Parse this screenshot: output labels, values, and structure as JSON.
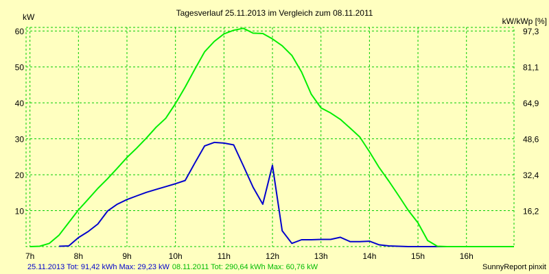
{
  "chart_data": {
    "type": "line",
    "title": "Tagesverlauf 25.11.2013 im Vergleich zum 08.11.2011",
    "ylabel_left": "kW",
    "ylabel_right": "kW/kWp [%]",
    "xlim": [
      6.92,
      16.98
    ],
    "ylim": [
      0,
      61
    ],
    "grid": true,
    "x_ticks": [
      7,
      8,
      9,
      10,
      11,
      12,
      13,
      14,
      15,
      16
    ],
    "x_tick_labels": [
      "7h",
      "8h",
      "9h",
      "10h",
      "11h",
      "12h",
      "13h",
      "14h",
      "15h",
      "16h"
    ],
    "y_ticks": [
      10,
      20,
      30,
      40,
      50,
      60
    ],
    "y_tick_labels": [
      "10",
      "20",
      "30",
      "40",
      "50",
      "60"
    ],
    "y2_ticks": [
      10,
      20,
      30,
      40,
      50,
      60
    ],
    "y2_tick_labels": [
      "16,2",
      "32,4",
      "48,6",
      "64,9",
      "81,1",
      "97,3"
    ],
    "series": [
      {
        "name": "25.11.2013",
        "color": "#0000CC",
        "x": [
          7.6,
          7.8,
          8.0,
          8.2,
          8.4,
          8.6,
          8.8,
          9.0,
          9.2,
          9.4,
          9.6,
          9.8,
          10.0,
          10.2,
          10.4,
          10.6,
          10.8,
          11.0,
          11.2,
          11.4,
          11.6,
          11.8,
          12.0,
          12.2,
          12.4,
          12.6,
          12.8,
          13.0,
          13.2,
          13.4,
          13.6,
          13.8,
          14.0,
          14.2,
          14.4,
          14.6,
          14.8,
          15.0,
          15.2,
          15.4,
          15.6,
          15.8,
          16.0,
          16.2,
          16.4
        ],
        "values": [
          0.1,
          0.2,
          2.5,
          4.2,
          6.3,
          9.9,
          11.8,
          13.1,
          14.1,
          15.1,
          15.9,
          16.7,
          17.5,
          18.4,
          23.3,
          28.0,
          29.0,
          28.8,
          28.3,
          22.5,
          16.5,
          11.8,
          22.6,
          4.4,
          0.9,
          1.9,
          1.9,
          2.0,
          2.0,
          2.6,
          1.4,
          1.4,
          1.5,
          0.5,
          0.2,
          0.1,
          0.0,
          0.0,
          0.0,
          0.0,
          0.0,
          0.0,
          0.0,
          0.0,
          0.0
        ]
      },
      {
        "name": "08.11.2011",
        "color": "#00EE00",
        "x": [
          7.0,
          7.2,
          7.4,
          7.6,
          7.8,
          8.0,
          8.2,
          8.4,
          8.6,
          8.8,
          9.0,
          9.2,
          9.4,
          9.6,
          9.8,
          10.0,
          10.2,
          10.4,
          10.6,
          10.8,
          11.0,
          11.2,
          11.4,
          11.6,
          11.8,
          12.0,
          12.2,
          12.4,
          12.6,
          12.8,
          13.0,
          13.2,
          13.4,
          13.6,
          13.8,
          14.0,
          14.2,
          14.4,
          14.6,
          14.8,
          15.0,
          15.2,
          15.4,
          15.6,
          15.8,
          16.0,
          16.2,
          16.4,
          16.6,
          16.8,
          16.98
        ],
        "values": [
          0.0,
          0.1,
          0.9,
          3.2,
          6.7,
          10.2,
          13.2,
          16.2,
          18.9,
          21.8,
          24.8,
          27.4,
          30.2,
          33.2,
          35.7,
          39.8,
          44.4,
          49.4,
          54.2,
          57.1,
          59.2,
          60.2,
          60.76,
          59.4,
          59.3,
          57.8,
          55.9,
          53.2,
          48.6,
          42.4,
          38.6,
          37.2,
          35.4,
          33.0,
          30.5,
          26.4,
          22.0,
          18.2,
          14.2,
          10.1,
          6.6,
          1.7,
          0.1,
          0.0,
          0.0,
          0.0,
          0.0,
          0.0,
          0.0,
          0.0,
          0.0
        ]
      }
    ],
    "footer": {
      "series1_text": "25.11.2013 Tot: 91,42 kWh Max: 29,23 kW",
      "series2_text": "08.11.2011 Tot: 290,64 kWh Max: 60,76 kW",
      "credit": "SunnyReport pinxit"
    },
    "colors": {
      "background": "#FFFFC0",
      "grid": "#00CC00"
    }
  }
}
